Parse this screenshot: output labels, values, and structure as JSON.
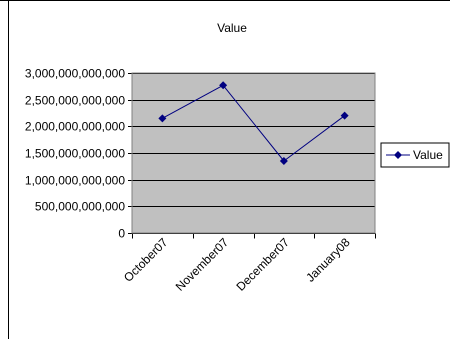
{
  "chart_data": {
    "type": "line",
    "title": "Value",
    "xlabel": "",
    "ylabel": "",
    "categories": [
      "October07",
      "November07",
      "December07",
      "January08"
    ],
    "series": [
      {
        "name": "Value",
        "values": [
          2150000000000,
          2770000000000,
          1350000000000,
          2200000000000
        ]
      }
    ],
    "ylim": [
      0,
      3000000000000
    ],
    "yticks": [
      0,
      500000000000,
      1000000000000,
      1500000000000,
      2000000000000,
      2500000000000,
      3000000000000
    ],
    "ytick_labels": [
      "0",
      "500,000,000,000",
      "1,000,000,000,000",
      "1,500,000,000,000",
      "2,000,000,000,000",
      "2,500,000,000,000",
      "3,000,000,000,000"
    ],
    "grid": true,
    "legend_position": "right",
    "colors": {
      "plot_background": "#c0c0c0",
      "series_line": "#000080",
      "gridline": "#000000",
      "frame": "#000000"
    }
  }
}
